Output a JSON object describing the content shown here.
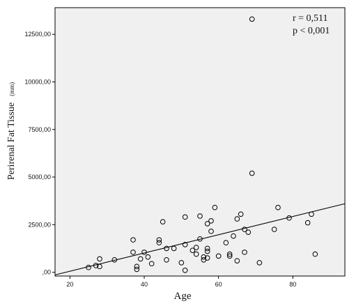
{
  "chart_data": {
    "type": "scatter",
    "xlabel": "Age",
    "ylabel_main": "Perirenal Fat Tissue",
    "ylabel_unit": "(mm)",
    "xlim": [
      16,
      94
    ],
    "ylim": [
      -200,
      13900
    ],
    "x_ticks": [
      20,
      40,
      60,
      80
    ],
    "x_tick_labels": [
      "20",
      "40",
      "60",
      "80"
    ],
    "y_ticks": [
      0,
      2500,
      5000,
      7500,
      10000,
      12500
    ],
    "y_tick_labels": [
      ",00",
      "2500,00",
      "5000,00",
      "7500,00",
      "10000,00",
      "12500,00"
    ],
    "grid": false,
    "annotations": [
      "r = 0,511",
      "p < 0,001"
    ],
    "fit_line": {
      "x": [
        16,
        94
      ],
      "y": [
        -140,
        3600
      ]
    },
    "points": [
      {
        "x": 25,
        "y": 250
      },
      {
        "x": 27,
        "y": 350
      },
      {
        "x": 28,
        "y": 300
      },
      {
        "x": 28,
        "y": 700
      },
      {
        "x": 32,
        "y": 650
      },
      {
        "x": 37,
        "y": 1700
      },
      {
        "x": 37,
        "y": 1050
      },
      {
        "x": 38,
        "y": 300
      },
      {
        "x": 38,
        "y": 150
      },
      {
        "x": 39,
        "y": 700
      },
      {
        "x": 40,
        "y": 1050
      },
      {
        "x": 41,
        "y": 800
      },
      {
        "x": 42,
        "y": 450
      },
      {
        "x": 44,
        "y": 1700
      },
      {
        "x": 44,
        "y": 1550
      },
      {
        "x": 45,
        "y": 2650
      },
      {
        "x": 46,
        "y": 1250
      },
      {
        "x": 46,
        "y": 650
      },
      {
        "x": 48,
        "y": 1250
      },
      {
        "x": 50,
        "y": 500
      },
      {
        "x": 51,
        "y": 1450
      },
      {
        "x": 51,
        "y": 2900
      },
      {
        "x": 51,
        "y": 100
      },
      {
        "x": 53,
        "y": 1150
      },
      {
        "x": 54,
        "y": 1300
      },
      {
        "x": 54,
        "y": 950
      },
      {
        "x": 55,
        "y": 1750
      },
      {
        "x": 55,
        "y": 2950
      },
      {
        "x": 56,
        "y": 800
      },
      {
        "x": 56,
        "y": 650
      },
      {
        "x": 57,
        "y": 1250
      },
      {
        "x": 57,
        "y": 1100
      },
      {
        "x": 57,
        "y": 750
      },
      {
        "x": 57,
        "y": 2550
      },
      {
        "x": 58,
        "y": 2150
      },
      {
        "x": 58,
        "y": 2700
      },
      {
        "x": 59,
        "y": 3400
      },
      {
        "x": 60,
        "y": 850
      },
      {
        "x": 62,
        "y": 1550
      },
      {
        "x": 63,
        "y": 950
      },
      {
        "x": 63,
        "y": 850
      },
      {
        "x": 64,
        "y": 1900
      },
      {
        "x": 65,
        "y": 600
      },
      {
        "x": 65,
        "y": 2800
      },
      {
        "x": 66,
        "y": 3050
      },
      {
        "x": 67,
        "y": 2250
      },
      {
        "x": 67,
        "y": 1050
      },
      {
        "x": 68,
        "y": 2100
      },
      {
        "x": 69,
        "y": 13300
      },
      {
        "x": 69,
        "y": 5200
      },
      {
        "x": 71,
        "y": 500
      },
      {
        "x": 75,
        "y": 2250
      },
      {
        "x": 76,
        "y": 3400
      },
      {
        "x": 79,
        "y": 2850
      },
      {
        "x": 84,
        "y": 2600
      },
      {
        "x": 85,
        "y": 3050
      },
      {
        "x": 86,
        "y": 950
      }
    ]
  }
}
